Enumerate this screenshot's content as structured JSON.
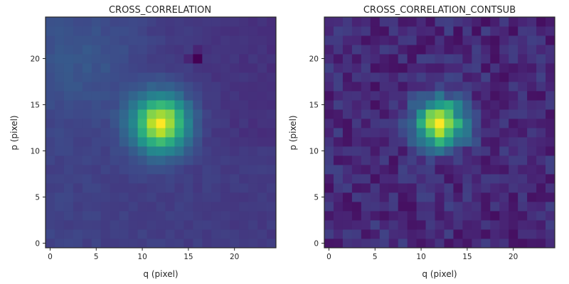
{
  "chart_data": [
    {
      "type": "heatmap",
      "title": "CROSS_CORRELATION",
      "xlabel": "q (pixel)",
      "ylabel": "p (pixel)",
      "x_ticks": [
        0,
        5,
        10,
        15,
        20
      ],
      "y_ticks": [
        0,
        5,
        10,
        15,
        20
      ],
      "xlim": [
        -0.5,
        24.5
      ],
      "ylim": [
        -0.5,
        24.5
      ],
      "colormap": "viridis",
      "grid": false,
      "peak": {
        "q": 12,
        "p": 13,
        "value": 1.0
      },
      "minimum": {
        "q": 16,
        "p": 20,
        "value": 0.0
      },
      "background_level": 0.2
    },
    {
      "type": "heatmap",
      "title": "CROSS_CORRELATION_CONTSUB",
      "xlabel": "q (pixel)",
      "ylabel": "p (pixel)",
      "x_ticks": [
        0,
        5,
        10,
        15,
        20
      ],
      "y_ticks": [
        0,
        5,
        10,
        15,
        20
      ],
      "xlim": [
        -0.5,
        24.5
      ],
      "ylim": [
        -0.5,
        24.5
      ],
      "colormap": "viridis",
      "grid": false,
      "peak": {
        "q": 12,
        "p": 13,
        "value": 1.0
      },
      "background_level": 0.12
    }
  ],
  "colors": {
    "viridis": [
      "#440154",
      "#482878",
      "#3e4989",
      "#31688e",
      "#26828e",
      "#1f9e89",
      "#35b779",
      "#6ece58",
      "#b5de2b",
      "#fde725"
    ],
    "axis": "#262626",
    "background": "#ffffff"
  }
}
